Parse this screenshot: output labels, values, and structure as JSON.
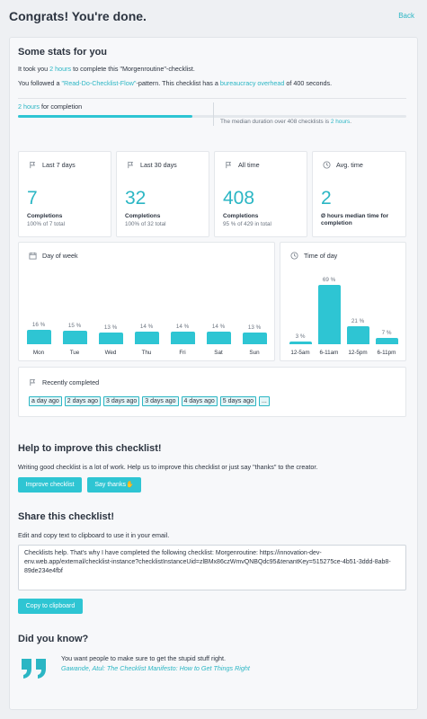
{
  "header": {
    "title": "Congrats! You're done.",
    "back": "Back"
  },
  "stats": {
    "heading": "Some stats for you",
    "line1_a": "It took you ",
    "line1_b": "2 hours",
    "line1_c": " to complete this \"Morgenroutine\"-checklist.",
    "line2_a": "You followed a ",
    "line2_b": "\"Read-Do-Checklist-Flow\"",
    "line2_c": "-pattern. This checklist has a ",
    "line2_d": "bureaucracy overhead",
    "line2_e": " of 400 seconds.",
    "progress_a": "2 hours",
    "progress_b": " for completion",
    "median_a": "The median duration over 408 checklists is ",
    "median_b": "2 hours",
    "median_c": ".",
    "progress_fraction": 0.45
  },
  "tiles": [
    {
      "icon": "flag-icon",
      "label": "Last 7 days",
      "value": "7",
      "sub": "Completions",
      "sub2": "100% of 7 total"
    },
    {
      "icon": "flag-icon",
      "label": "Last 30 days",
      "value": "32",
      "sub": "Completions",
      "sub2": "100% of 32 total"
    },
    {
      "icon": "flag-icon",
      "label": "All time",
      "value": "408",
      "sub": "Completions",
      "sub2": "95 % of 429 in total"
    },
    {
      "icon": "clock-icon",
      "label": "Avg. time",
      "value": "2",
      "sub": "Ø hours median time for completion",
      "sub2": ""
    }
  ],
  "week": {
    "title": "Day of week",
    "chart_data": {
      "type": "bar",
      "categories": [
        "Mon",
        "Tue",
        "Wed",
        "Thu",
        "Fri",
        "Sat",
        "Sun"
      ],
      "values": [
        16,
        15,
        13,
        14,
        14,
        14,
        13
      ],
      "labels": [
        "16 %",
        "15 %",
        "13 %",
        "14 %",
        "14 %",
        "14 %",
        "13 %"
      ]
    }
  },
  "timeofday": {
    "title": "Time of day",
    "chart_data": {
      "type": "bar",
      "categories": [
        "12-5am",
        "6-11am",
        "12-5pm",
        "6-11pm"
      ],
      "values": [
        3,
        69,
        21,
        7
      ],
      "labels": [
        "3 %",
        "69 %",
        "21 %",
        "7 %"
      ]
    }
  },
  "recent": {
    "title": "Recently completed",
    "chips": [
      "a day ago",
      "2 days ago",
      "3 days ago",
      "3 days ago",
      "4 days ago",
      "5 days ago",
      "..."
    ]
  },
  "improve": {
    "heading": "Help to improve this checklist!",
    "text": "Writing good checklist is a lot of work. Help us to improve this checklist or just say \"thanks\" to the creator.",
    "btn1": "Improve checklist",
    "btn2": "Say thanks✋"
  },
  "share": {
    "heading": "Share this checklist!",
    "text": "Edit and copy text to clipboard to use it in your email.",
    "message": "Checklists help. That's why I have completed the following checklist: Morgenroutine: https://innovation-dev-env.web.app/external/checklist-instance?checklistInstanceUid=zlBMx86czWmvQNBQdc95&tenantKey=515275ce-4b51-3ddd-8ab8-89de234e4fbf",
    "copy": "Copy to clipboard"
  },
  "know": {
    "heading": "Did you know?",
    "quote": "You want people to make sure to get the stupid stuff right.",
    "source": "Gawande, Atul: The Checklist Manifesto: How to Get Things Right"
  }
}
